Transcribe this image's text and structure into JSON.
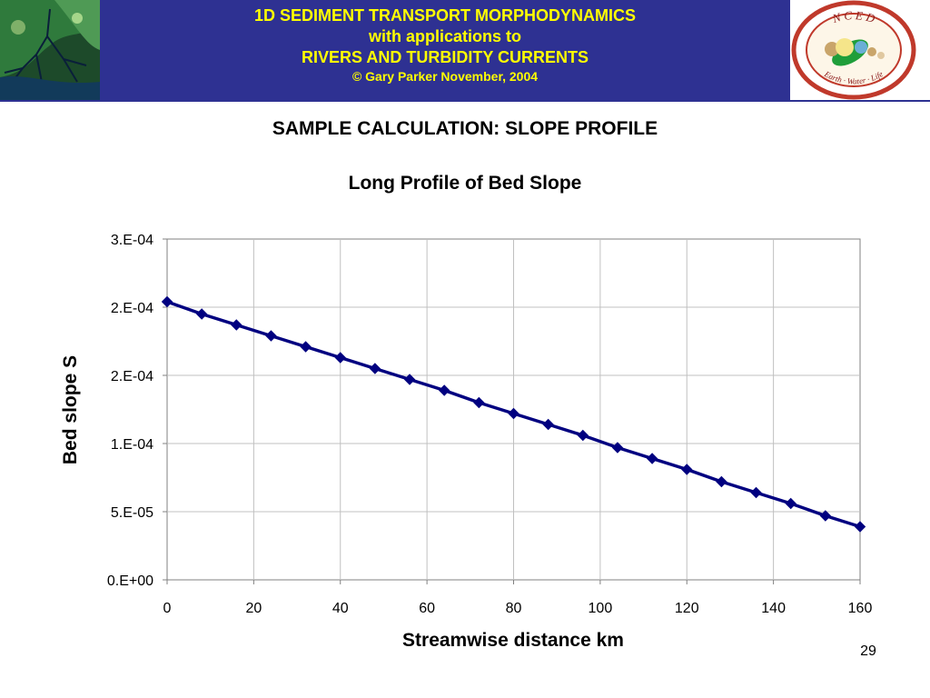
{
  "header": {
    "line1": "1D SEDIMENT TRANSPORT MORPHODYNAMICS",
    "line2": "with applications to",
    "line3": "RIVERS AND TURBIDITY CURRENTS",
    "copyright": "© Gary Parker November, 2004",
    "logo_letters": "N C E D",
    "logo_motto": "Earth · Water · Life",
    "colors": {
      "band": "#2e3192",
      "title_text": "#ffff00",
      "logo_ring": "#c0392b"
    }
  },
  "slide_title": "SAMPLE CALCULATION: SLOPE PROFILE",
  "page_number": "29",
  "chart_data": {
    "type": "line",
    "title": "Long Profile of Bed Slope",
    "xlabel": "Streamwise distance km",
    "ylabel": "Bed slope S",
    "xlim": [
      0,
      160
    ],
    "ylim": [
      0,
      0.00025
    ],
    "x_ticks": [
      "0",
      "20",
      "40",
      "60",
      "80",
      "100",
      "120",
      "140",
      "160"
    ],
    "y_ticks": [
      "0.E+00",
      "5.E-05",
      "1.E-04",
      "2.E-04",
      "2.E-04",
      "3.E-04"
    ],
    "y_tick_values": [
      0,
      5e-05,
      0.0001,
      0.00015,
      0.0002,
      0.00025
    ],
    "grid": true,
    "legend": "none",
    "series": [
      {
        "color": "#000080",
        "marker": "diamond",
        "x": [
          0,
          8,
          16,
          24,
          32,
          40,
          48,
          56,
          64,
          72,
          80,
          88,
          96,
          104,
          112,
          120,
          128,
          136,
          144,
          152,
          160
        ],
        "y": [
          0.000204,
          0.000195,
          0.000187,
          0.000179,
          0.000171,
          0.000163,
          0.000155,
          0.000147,
          0.000139,
          0.00013,
          0.000122,
          0.000114,
          0.000106,
          9.7e-05,
          8.9e-05,
          8.1e-05,
          7.2e-05,
          6.4e-05,
          5.6e-05,
          4.7e-05,
          3.9e-05
        ]
      }
    ]
  }
}
